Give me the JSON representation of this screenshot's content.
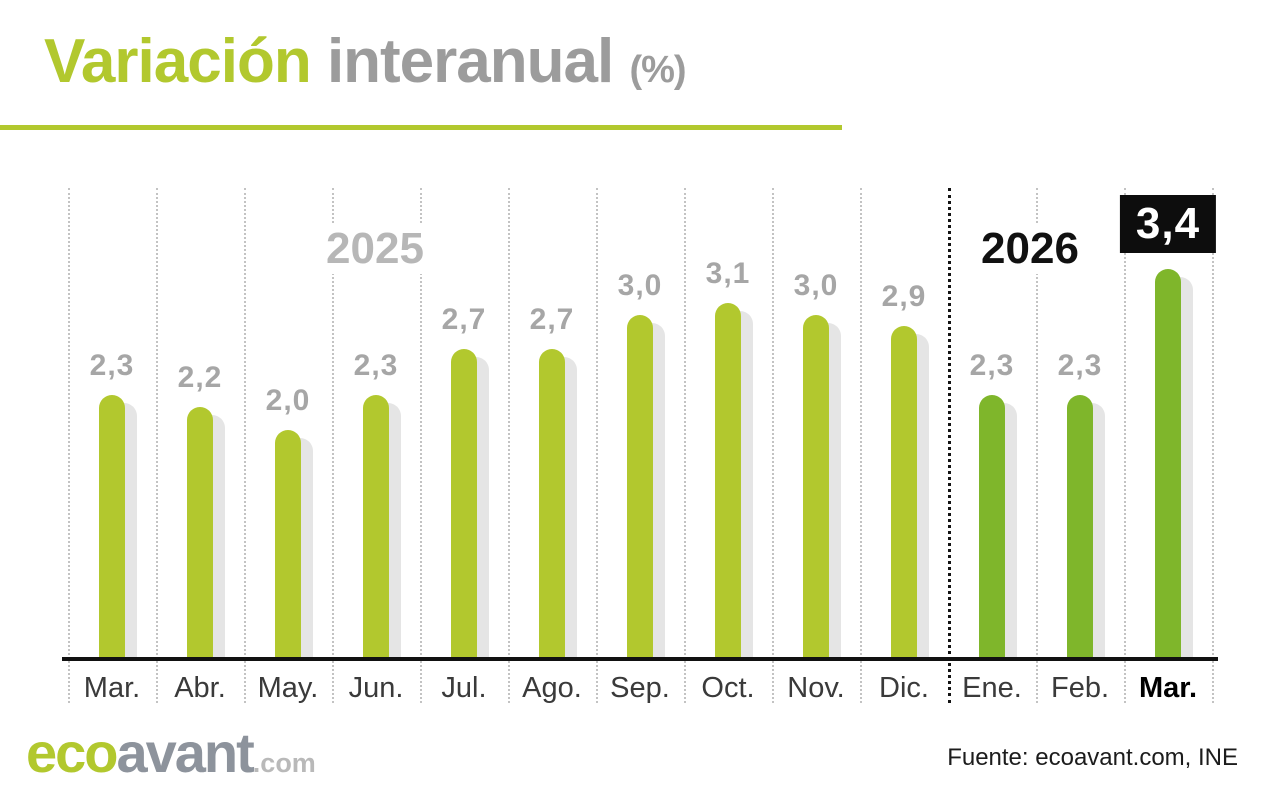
{
  "title": {
    "highlight": "Variación",
    "rest": "interanual",
    "unit": "(%)"
  },
  "chart_data": {
    "type": "bar",
    "categories": [
      "Mar.",
      "Abr.",
      "May.",
      "Jun.",
      "Jul.",
      "Ago.",
      "Sep.",
      "Oct.",
      "Nov.",
      "Dic.",
      "Ene.",
      "Feb.",
      "Mar."
    ],
    "values": [
      2.3,
      2.2,
      2.0,
      2.3,
      2.7,
      2.7,
      3.0,
      3.1,
      3.0,
      2.9,
      2.3,
      2.3,
      3.4
    ],
    "value_labels": [
      "2,3",
      "2,2",
      "2,0",
      "2,3",
      "2,7",
      "2,7",
      "3,0",
      "3,1",
      "3,0",
      "2,9",
      "2,3",
      "2,3",
      "3,4"
    ],
    "year_groups": [
      {
        "label": "2025",
        "start": 0,
        "end": 9
      },
      {
        "label": "2026",
        "start": 10,
        "end": 12
      }
    ],
    "highlight_index": 12,
    "ylim": [
      0,
      3.4
    ],
    "grid": "vertical-dotted",
    "legend": "none",
    "colors": {
      "bar_2025": "#b2c82e",
      "bar_2026": "#7fb62b",
      "bar_shadow": "#e5e5e5",
      "value_label": "#a6a6a6",
      "highlight_bg": "#0d0d0d",
      "highlight_text": "#ffffff",
      "axis": "#111111"
    }
  },
  "footer": {
    "logo": {
      "eco": "eco",
      "avant": "avant",
      "tld": ".com"
    },
    "source": "Fuente: ecoavant.com, INE"
  }
}
